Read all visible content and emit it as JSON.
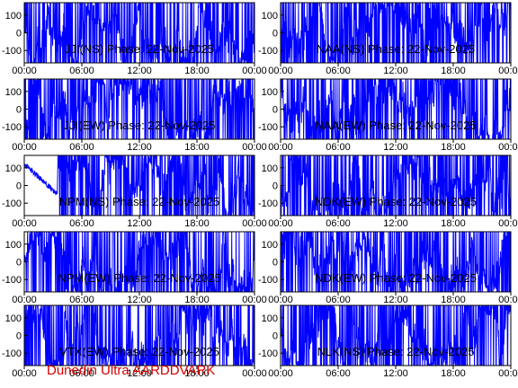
{
  "chart_data": [
    {
      "type": "line",
      "title": "JJI(NS) Phase: 22-Nov-2025",
      "x_ticks": [
        "00:00",
        "06:00",
        "12:00",
        "18:00",
        "00:00"
      ],
      "y_ticks": [
        "100",
        "0",
        "-100"
      ],
      "ylim": [
        -170,
        170
      ],
      "series": [
        {
          "color": "#0000ff",
          "pattern": "saturated",
          "values": []
        }
      ]
    },
    {
      "type": "line",
      "title": "NAA(NS) Phase: 22-Nov-2025",
      "x_ticks": [
        "00:00",
        "06:00",
        "12:00",
        "18:00",
        "00:00"
      ],
      "y_ticks": [
        "100",
        "0",
        "-100"
      ],
      "ylim": [
        -170,
        170
      ],
      "series": [
        {
          "color": "#0000ff",
          "pattern": "saturated",
          "values": []
        }
      ]
    },
    {
      "type": "line",
      "title": "JJI(EW) Phase: 22-Nov-2025",
      "x_ticks": [
        "00:00",
        "06:00",
        "12:00",
        "18:00",
        "00:00"
      ],
      "y_ticks": [
        "100",
        "0",
        "-100"
      ],
      "ylim": [
        -170,
        170
      ],
      "series": [
        {
          "color": "#0000ff",
          "pattern": "saturated",
          "values": []
        }
      ]
    },
    {
      "type": "line",
      "title": "NAA(EW) Phase: 22-Nov-2025",
      "x_ticks": [
        "00:00",
        "06:00",
        "12:00",
        "18:00",
        "00:00"
      ],
      "y_ticks": [
        "100",
        "0",
        "-100"
      ],
      "ylim": [
        -170,
        170
      ],
      "series": [
        {
          "color": "#0000ff",
          "pattern": "saturated",
          "values": []
        }
      ]
    },
    {
      "type": "line",
      "title": "NPM(NS) Phase: 22-Nov-2025",
      "x_ticks": [
        "00:00",
        "06:00",
        "12:00",
        "18:00",
        "00:00"
      ],
      "y_ticks": [
        "100",
        "0",
        "-100"
      ],
      "ylim": [
        -170,
        170
      ],
      "series": [
        {
          "color": "#0000ff",
          "pattern": "drift-then-saturated",
          "values": []
        }
      ]
    },
    {
      "type": "line",
      "title": "NDK(EW) Phase: 22-Nov-2025",
      "x_ticks": [
        "00:00",
        "06:00",
        "12:00",
        "18:00",
        "00:00"
      ],
      "y_ticks": [
        "100",
        "0",
        "-100"
      ],
      "ylim": [
        -170,
        170
      ],
      "series": [
        {
          "color": "#0000ff",
          "pattern": "saturated",
          "values": []
        }
      ]
    },
    {
      "type": "line",
      "title": "NPM(EW) Phase: 22-Nov-2025",
      "x_ticks": [
        "00:00",
        "06:00",
        "12:00",
        "18:00",
        "00:00"
      ],
      "y_ticks": [
        "100",
        "0",
        "-100"
      ],
      "ylim": [
        -170,
        170
      ],
      "series": [
        {
          "color": "#0000ff",
          "pattern": "saturated",
          "values": []
        }
      ]
    },
    {
      "type": "line",
      "title": "NDK(EW) Phase: 22-Nov-2025",
      "x_ticks": [
        "00:00",
        "06:00",
        "12:00",
        "18:00",
        "00:00"
      ],
      "y_ticks": [
        "100",
        "0",
        "-100"
      ],
      "ylim": [
        -170,
        170
      ],
      "series": [
        {
          "color": "#0000ff",
          "pattern": "saturated",
          "values": []
        }
      ]
    },
    {
      "type": "line",
      "title": "VTX(EW) Phase: 22-Nov-2025",
      "x_ticks": [
        "00:00",
        "06:00",
        "12:00",
        "18:00",
        "00:00"
      ],
      "y_ticks": [
        "100",
        "0",
        "-100"
      ],
      "ylim": [
        -170,
        170
      ],
      "series": [
        {
          "color": "#0000ff",
          "pattern": "saturated",
          "values": []
        }
      ]
    },
    {
      "type": "line",
      "title": "NLK(NS) Phase: 22-Nov-2025",
      "x_ticks": [
        "00:00",
        "06:00",
        "12:00",
        "18:00",
        "00:00"
      ],
      "y_ticks": [
        "100",
        "0",
        "-100"
      ],
      "ylim": [
        -170,
        170
      ],
      "series": [
        {
          "color": "#0000ff",
          "pattern": "saturated",
          "values": []
        }
      ]
    }
  ],
  "credit": "Dunedin Ultra AARDDVARK"
}
